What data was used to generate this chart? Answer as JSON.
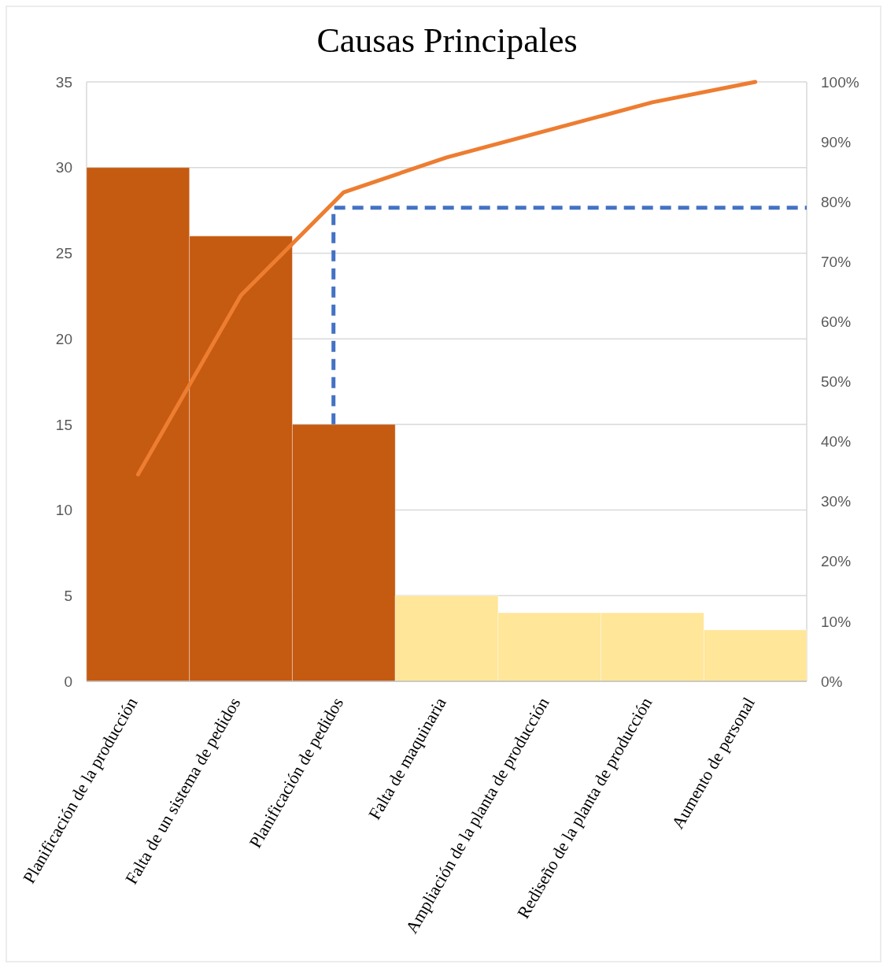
{
  "chart_data": {
    "type": "bar",
    "title": "Causas Principales",
    "categories": [
      "Planificación de la producción",
      "Falta de un sistema de pedidos",
      "Planificación de pedidos",
      "Falta de maquinaria",
      "Ampliación de la planta de producción",
      "Rediseño de la planta de producción",
      "Aumento de personal"
    ],
    "series": [
      {
        "colors": [
          "#c55a11",
          "#c55a11",
          "#c55a11",
          "#ffe699",
          "#ffe699",
          "#ffe699",
          "#ffe699"
        ],
        "values": [
          30,
          26,
          15,
          5,
          4,
          4,
          3
        ]
      },
      {
        "type": "line",
        "axis": "y2",
        "color": "#ed7d31",
        "values": [
          34.5,
          64.4,
          81.6,
          87.4,
          92.0,
          96.6,
          100
        ]
      }
    ],
    "ylim": [
      0,
      35
    ],
    "yticks": [
      0,
      5,
      10,
      15,
      20,
      25,
      30,
      35
    ],
    "y2lim": [
      0,
      100
    ],
    "y2ticks": [
      {
        "value": 0,
        "label": "0%"
      },
      {
        "value": 10,
        "label": "10%"
      },
      {
        "value": 20,
        "label": "20%"
      },
      {
        "value": 30,
        "label": "30%"
      },
      {
        "value": 40,
        "label": "40%"
      },
      {
        "value": 50,
        "label": "50%"
      },
      {
        "value": 60,
        "label": "60%"
      },
      {
        "value": 70,
        "label": "70%"
      },
      {
        "value": 80,
        "label": "80%"
      },
      {
        "value": 90,
        "label": "90%"
      },
      {
        "value": 100,
        "label": "100%"
      }
    ],
    "ref_lines": [
      {
        "axis": "y2",
        "value": 79,
        "color": "#4472c4",
        "line_style": "dashed"
      }
    ],
    "grid": "y"
  }
}
